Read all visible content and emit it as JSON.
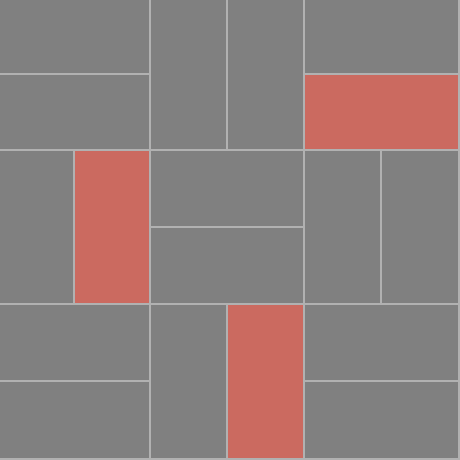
{
  "board": {
    "background_color": "#b1b1b1",
    "tile_color": "#808080",
    "highlight_color": "#cb6a60",
    "tiles": [
      {
        "name": "tile-r1c1-horizontal-top",
        "highlighted": false
      },
      {
        "name": "tile-r1c1-horizontal-bottom",
        "highlighted": false
      },
      {
        "name": "tile-r1c2-vertical-left",
        "highlighted": false
      },
      {
        "name": "tile-r1c2-vertical-right",
        "highlighted": false
      },
      {
        "name": "tile-r1c3-horizontal-top",
        "highlighted": false
      },
      {
        "name": "tile-r1c3-horizontal-bottom",
        "highlighted": true
      },
      {
        "name": "tile-r2c1-vertical-left",
        "highlighted": false
      },
      {
        "name": "tile-r2c1-vertical-right",
        "highlighted": true
      },
      {
        "name": "tile-r2c2-horizontal-top",
        "highlighted": false
      },
      {
        "name": "tile-r2c2-horizontal-bottom",
        "highlighted": false
      },
      {
        "name": "tile-r2c3-vertical-left",
        "highlighted": false
      },
      {
        "name": "tile-r2c3-vertical-right",
        "highlighted": false
      },
      {
        "name": "tile-r3c1-horizontal-top",
        "highlighted": false
      },
      {
        "name": "tile-r3c1-horizontal-bottom",
        "highlighted": false
      },
      {
        "name": "tile-r3c2-vertical-left",
        "highlighted": false
      },
      {
        "name": "tile-r3c2-vertical-right",
        "highlighted": true
      },
      {
        "name": "tile-r3c3-horizontal-top",
        "highlighted": false
      },
      {
        "name": "tile-r3c3-horizontal-bottom",
        "highlighted": false
      }
    ]
  }
}
